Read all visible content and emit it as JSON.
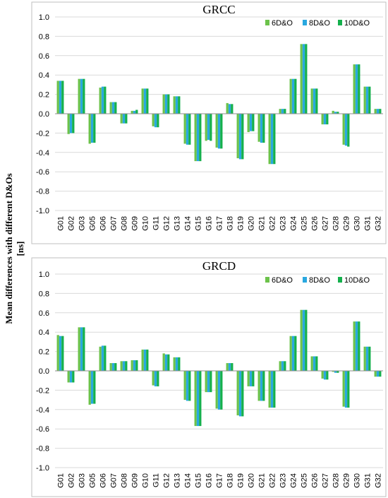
{
  "ylabel_lines": [
    "Mean differences with different D&Os",
    "[ns]"
  ],
  "series_colors": [
    "#6cc24a",
    "#29a8e0",
    "#14b04c"
  ],
  "chart_data": [
    {
      "type": "bar",
      "title": "GRCC",
      "ylim": [
        -1.0,
        1.0
      ],
      "yticks": [
        "1.0",
        "0.8",
        "0.6",
        "0.4",
        "0.2",
        "0.0",
        "-0.2",
        "-0.4",
        "-0.6",
        "-0.8",
        "-1.0"
      ],
      "grid": true,
      "legend_position": "top-right",
      "categories": [
        "G01",
        "G02",
        "G03",
        "G05",
        "G06",
        "G07",
        "G08",
        "G09",
        "G10",
        "G11",
        "G12",
        "G13",
        "G14",
        "G15",
        "G16",
        "G17",
        "G18",
        "G19",
        "G20",
        "G21",
        "G22",
        "G23",
        "G24",
        "G25",
        "G26",
        "G27",
        "G28",
        "G29",
        "G30",
        "G31",
        "G32"
      ],
      "series": [
        {
          "name": "6D&O",
          "values": [
            0.34,
            -0.21,
            0.36,
            -0.31,
            0.27,
            0.12,
            -0.1,
            0.03,
            0.26,
            -0.13,
            0.2,
            0.18,
            -0.31,
            -0.49,
            -0.28,
            -0.35,
            0.11,
            -0.46,
            -0.19,
            -0.29,
            -0.52,
            0.05,
            0.36,
            0.72,
            0.26,
            -0.11,
            0.03,
            -0.32,
            0.51,
            0.28,
            0.05
          ]
        },
        {
          "name": "8D&O",
          "values": [
            0.34,
            -0.2,
            0.36,
            -0.3,
            0.28,
            0.12,
            -0.1,
            0.03,
            0.26,
            -0.14,
            0.2,
            0.18,
            -0.32,
            -0.49,
            -0.27,
            -0.36,
            0.1,
            -0.47,
            -0.18,
            -0.3,
            -0.52,
            0.05,
            0.36,
            0.72,
            0.26,
            -0.11,
            0.02,
            -0.33,
            0.51,
            0.28,
            0.05
          ]
        },
        {
          "name": "10D&O",
          "values": [
            0.34,
            -0.2,
            0.36,
            -0.3,
            0.28,
            0.12,
            -0.1,
            0.04,
            0.26,
            -0.14,
            0.2,
            0.18,
            -0.32,
            -0.49,
            -0.28,
            -0.36,
            0.1,
            -0.47,
            -0.18,
            -0.3,
            -0.52,
            0.05,
            0.36,
            0.72,
            0.26,
            -0.11,
            0.02,
            -0.34,
            0.51,
            0.28,
            0.05
          ]
        }
      ]
    },
    {
      "type": "bar",
      "title": "GRCD",
      "ylim": [
        -1.0,
        1.0
      ],
      "yticks": [
        "1.0",
        "0.8",
        "0.6",
        "0.4",
        "0.2",
        "0.0",
        "-0.2",
        "-0.4",
        "-0.6",
        "-0.8",
        "-1.0"
      ],
      "grid": true,
      "legend_position": "top-right",
      "categories": [
        "G01",
        "G02",
        "G03",
        "G05",
        "G06",
        "G07",
        "G08",
        "G09",
        "G10",
        "G11",
        "G12",
        "G13",
        "G14",
        "G15",
        "G16",
        "G17",
        "G18",
        "G19",
        "G20",
        "G21",
        "G22",
        "G23",
        "G24",
        "G25",
        "G26",
        "G27",
        "G28",
        "G29",
        "G30",
        "G31",
        "G32"
      ],
      "series": [
        {
          "name": "6D&O",
          "values": [
            0.37,
            -0.12,
            0.45,
            -0.35,
            0.25,
            0.08,
            0.1,
            0.11,
            0.22,
            -0.15,
            0.18,
            0.14,
            -0.3,
            -0.57,
            -0.22,
            -0.39,
            0.08,
            -0.46,
            -0.16,
            -0.31,
            -0.38,
            0.1,
            0.36,
            0.63,
            0.15,
            -0.08,
            -0.01,
            -0.37,
            0.51,
            0.25,
            -0.06
          ]
        },
        {
          "name": "8D&O",
          "values": [
            0.36,
            -0.12,
            0.45,
            -0.34,
            0.26,
            0.08,
            0.1,
            0.11,
            0.22,
            -0.16,
            0.17,
            0.14,
            -0.31,
            -0.57,
            -0.22,
            -0.4,
            0.08,
            -0.47,
            -0.16,
            -0.31,
            -0.38,
            0.1,
            0.36,
            0.63,
            0.15,
            -0.09,
            -0.02,
            -0.38,
            0.51,
            0.25,
            -0.06
          ]
        },
        {
          "name": "10D&O",
          "values": [
            0.36,
            -0.12,
            0.45,
            -0.34,
            0.26,
            0.08,
            0.1,
            0.11,
            0.22,
            -0.16,
            0.17,
            0.14,
            -0.31,
            -0.57,
            -0.22,
            -0.4,
            0.08,
            -0.47,
            -0.16,
            -0.31,
            -0.38,
            0.1,
            0.36,
            0.63,
            0.15,
            -0.09,
            -0.02,
            -0.38,
            0.51,
            0.25,
            -0.06
          ]
        }
      ]
    }
  ]
}
